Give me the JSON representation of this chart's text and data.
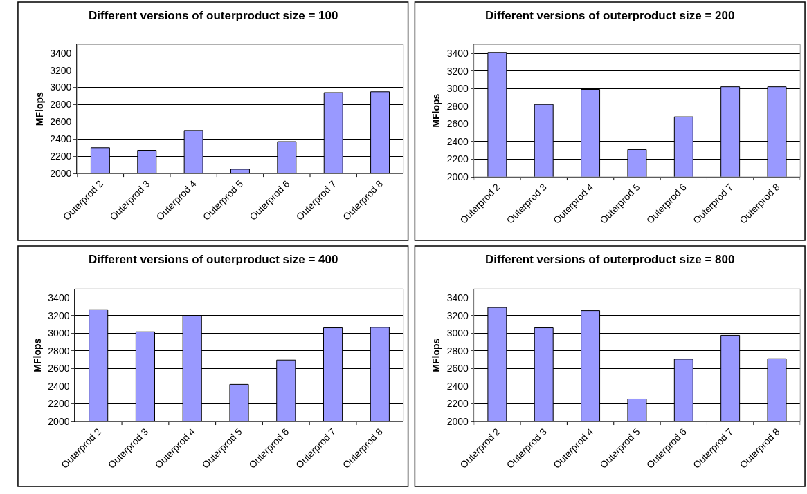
{
  "chart_data": [
    {
      "type": "bar",
      "title": "Different versions of outerproduct size = 100",
      "ylabel": "MFlops",
      "categories": [
        "Outerprod 2",
        "Outerprod 3",
        "Outerprod 4",
        "Outerprod 5",
        "Outerprod 6",
        "Outerprod 7",
        "Outerprod 8"
      ],
      "values": [
        2300,
        2270,
        2500,
        2050,
        2370,
        2940,
        2950
      ],
      "color": "#9999ff",
      "ylim": [
        2000,
        3500
      ],
      "yticks": [
        2000,
        2200,
        2400,
        2600,
        2800,
        3000,
        3200,
        3400
      ],
      "grid": "y"
    },
    {
      "type": "bar",
      "title": "Different versions of outerproduct size = 200",
      "ylabel": "MFlops",
      "categories": [
        "Outerprod 2",
        "Outerprod 3",
        "Outerprod 4",
        "Outerprod 5",
        "Outerprod 6",
        "Outerprod 7",
        "Outerprod 8"
      ],
      "values": [
        3410,
        2820,
        2990,
        2310,
        2680,
        3020,
        3020
      ],
      "color": "#9999ff",
      "ylim": [
        2000,
        3500
      ],
      "yticks": [
        2000,
        2200,
        2400,
        2600,
        2800,
        3000,
        3200,
        3400
      ],
      "grid": "y"
    },
    {
      "type": "bar",
      "title": "Different versions of outerproduct size = 400",
      "ylabel": "MFlops",
      "categories": [
        "Outerprod 2",
        "Outerprod 3",
        "Outerprod 4",
        "Outerprod 5",
        "Outerprod 6",
        "Outerprod 7",
        "Outerprod 8"
      ],
      "values": [
        3265,
        3015,
        3195,
        2420,
        2695,
        3060,
        3065
      ],
      "color": "#9999ff",
      "ylim": [
        2000,
        3500
      ],
      "yticks": [
        2000,
        2200,
        2400,
        2600,
        2800,
        3000,
        3200,
        3400
      ],
      "grid": "y"
    },
    {
      "type": "bar",
      "title": "Different versions of outerproduct size = 800",
      "ylabel": "MFlops",
      "categories": [
        "Outerprod 2",
        "Outerprod 3",
        "Outerprod 4",
        "Outerprod 5",
        "Outerprod 6",
        "Outerprod 7",
        "Outerprod 8"
      ],
      "values": [
        3290,
        3060,
        3255,
        2255,
        2705,
        2975,
        2710
      ],
      "color": "#9999ff",
      "ylim": [
        2000,
        3500
      ],
      "yticks": [
        2000,
        2200,
        2400,
        2600,
        2800,
        3000,
        3200,
        3400
      ],
      "grid": "y"
    }
  ]
}
